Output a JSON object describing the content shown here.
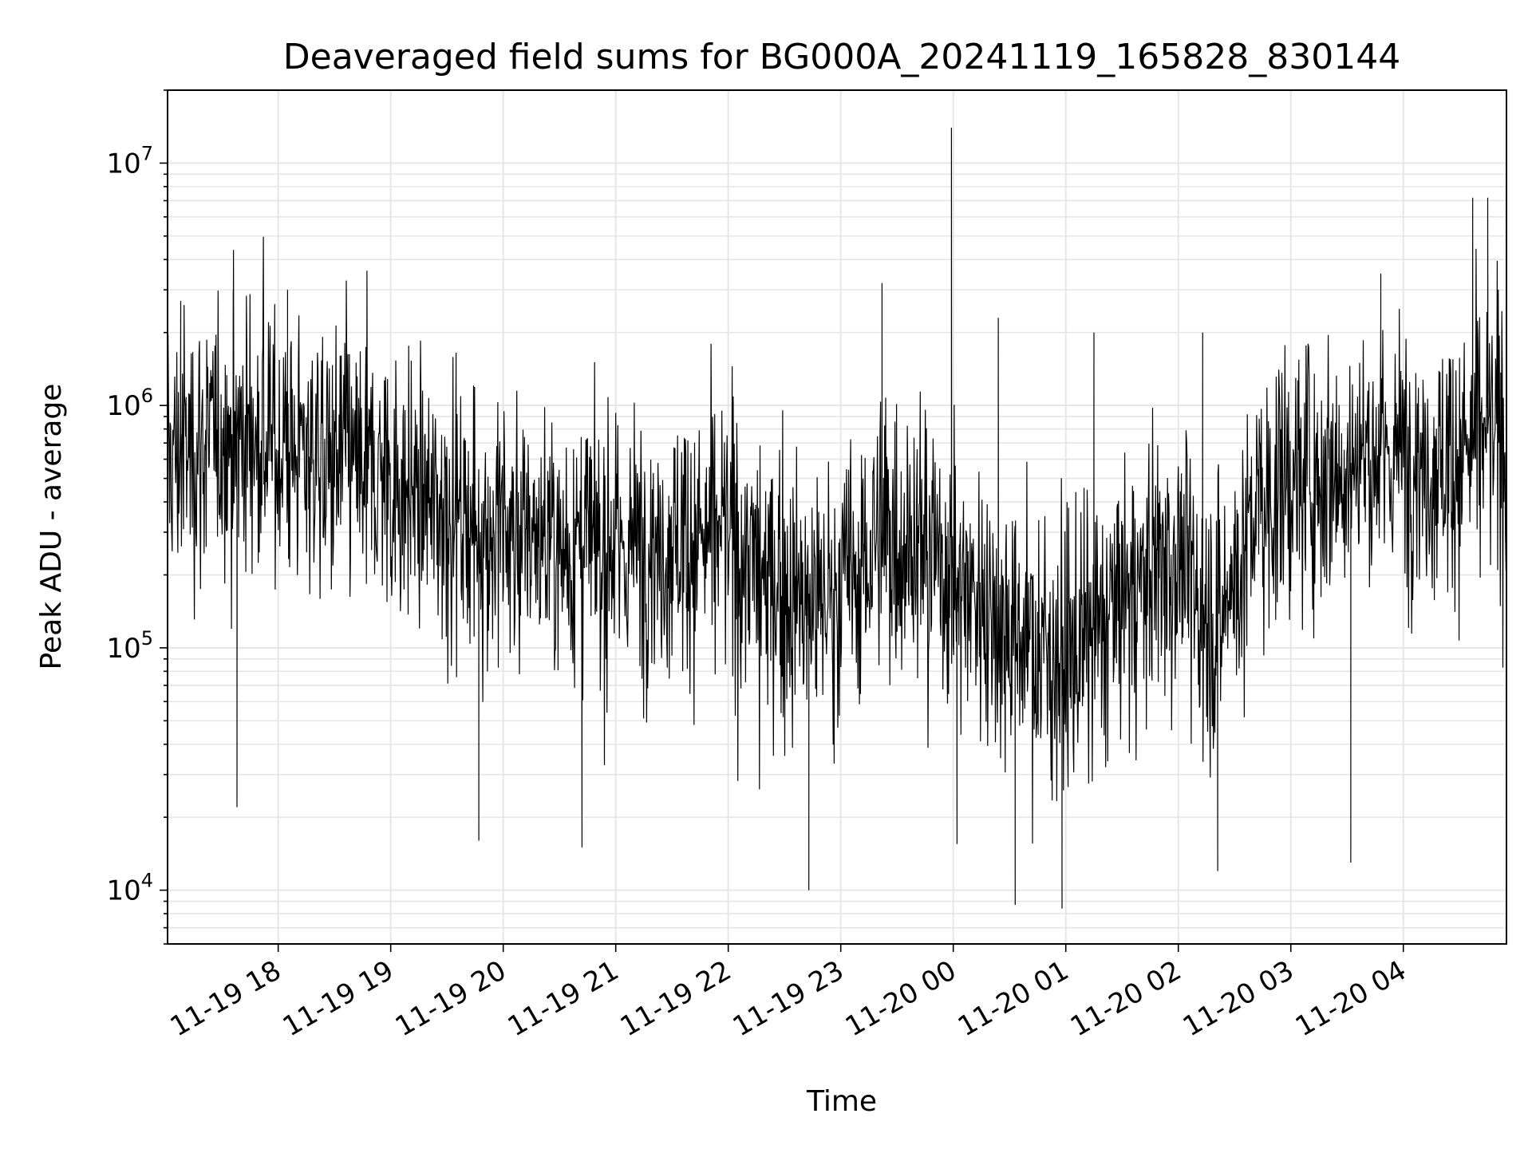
{
  "chart_data": {
    "type": "line",
    "title": "Deaveraged field sums for BG000A_20241119_165828_830144",
    "xlabel": "Time",
    "ylabel": "Peak ADU - average",
    "yscale": "log",
    "ylim": [
      6000,
      20000000
    ],
    "xlim": [
      "2024-11-19 17:01",
      "2024-11-20 04:55"
    ],
    "grid": true,
    "x_ticks": [
      "11-19 18",
      "11-19 19",
      "11-19 20",
      "11-19 21",
      "11-19 22",
      "11-19 23",
      "11-20 00",
      "11-20 01",
      "11-20 02",
      "11-20 03",
      "11-20 04"
    ],
    "y_ticks": [
      {
        "value": 10000,
        "base": "10",
        "exp": "4"
      },
      {
        "value": 100000,
        "base": "10",
        "exp": "5"
      },
      {
        "value": 1000000,
        "base": "10",
        "exp": "6"
      },
      {
        "value": 10000000,
        "base": "10",
        "exp": "7"
      }
    ],
    "series": [
      {
        "color": "#000000",
        "x": [
          "2024-11-19 17:00",
          "2024-11-19 17:20",
          "2024-11-19 17:40",
          "2024-11-19 18:00",
          "2024-11-19 18:20",
          "2024-11-19 18:40",
          "2024-11-19 19:00",
          "2024-11-19 19:20",
          "2024-11-19 19:40",
          "2024-11-19 20:00",
          "2024-11-19 20:20",
          "2024-11-19 20:40",
          "2024-11-19 21:00",
          "2024-11-19 21:20",
          "2024-11-19 21:40",
          "2024-11-19 22:00",
          "2024-11-19 22:20",
          "2024-11-19 22:40",
          "2024-11-19 23:00",
          "2024-11-19 23:20",
          "2024-11-19 23:40",
          "2024-11-20 00:00",
          "2024-11-20 00:20",
          "2024-11-20 00:40",
          "2024-11-20 01:00",
          "2024-11-20 01:20",
          "2024-11-20 01:40",
          "2024-11-20 02:00",
          "2024-11-20 02:20",
          "2024-11-20 02:40",
          "2024-11-20 03:00",
          "2024-11-20 03:20",
          "2024-11-20 03:40",
          "2024-11-20 04:00",
          "2024-11-20 04:20",
          "2024-11-20 04:40",
          "2024-11-20 04:55"
        ],
        "median": [
          600000,
          700000,
          750000,
          700000,
          650000,
          600000,
          500000,
          400000,
          350000,
          300000,
          290000,
          260000,
          250000,
          280000,
          300000,
          300000,
          200000,
          150000,
          180000,
          280000,
          300000,
          200000,
          150000,
          110000,
          90000,
          130000,
          200000,
          250000,
          120000,
          350000,
          500000,
          550000,
          600000,
          650000,
          600000,
          750000,
          800000
        ],
        "spikes": [
          {
            "x": "2024-11-19 17:08",
            "y": 2700000
          },
          {
            "x": "2024-11-19 17:36",
            "y": 3000000
          },
          {
            "x": "2024-11-19 17:38",
            "y": 22000
          },
          {
            "x": "2024-11-19 18:05",
            "y": 3000000
          },
          {
            "x": "2024-11-19 19:47",
            "y": 16000
          },
          {
            "x": "2024-11-19 20:42",
            "y": 15000
          },
          {
            "x": "2024-11-19 22:43",
            "y": 10000
          },
          {
            "x": "2024-11-19 23:22",
            "y": 3200000
          },
          {
            "x": "2024-11-19 23:59",
            "y": 14000000
          },
          {
            "x": "2024-11-20 00:02",
            "y": 15500
          },
          {
            "x": "2024-11-20 00:24",
            "y": 2300000
          },
          {
            "x": "2024-11-20 00:33",
            "y": 8700
          },
          {
            "x": "2024-11-20 00:58",
            "y": 8400
          },
          {
            "x": "2024-11-20 01:15",
            "y": 2000000
          },
          {
            "x": "2024-11-20 02:13",
            "y": 2000000
          },
          {
            "x": "2024-11-20 02:21",
            "y": 12000
          },
          {
            "x": "2024-11-20 03:32",
            "y": 13000
          },
          {
            "x": "2024-11-20 03:48",
            "y": 3500000
          },
          {
            "x": "2024-11-20 04:37",
            "y": 7200000
          },
          {
            "x": "2024-11-20 04:45",
            "y": 7200000
          }
        ]
      }
    ]
  }
}
